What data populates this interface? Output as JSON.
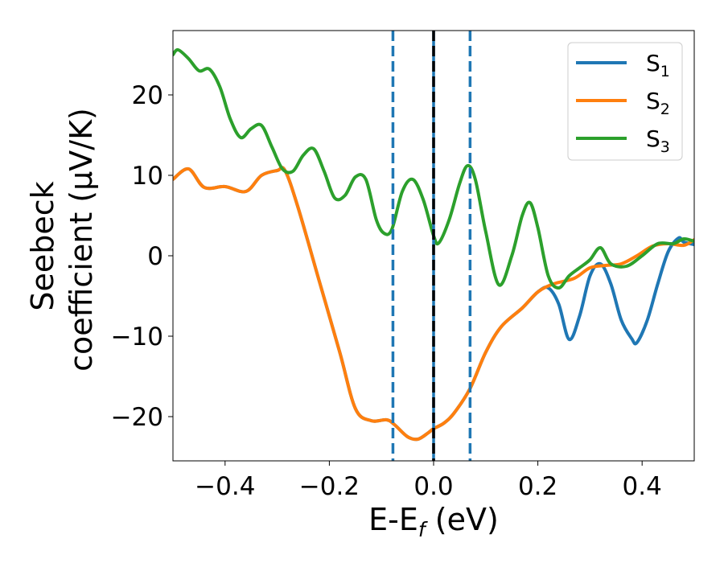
{
  "chart_data": {
    "type": "line",
    "xlabel": "E-E",
    "xlabel_sub": "f",
    "xlabel_unit": " (eV)",
    "ylabel_line1": "Seebeck",
    "ylabel_line2": "coefficient  (μV/K)",
    "xlim": [
      -0.5,
      0.5
    ],
    "ylim": [
      -25.5,
      28
    ],
    "xticks": [
      -0.4,
      -0.2,
      0.0,
      0.2,
      0.4
    ],
    "xtick_labels": [
      "−0.4",
      "−0.2",
      "0.0",
      "0.2",
      "0.4"
    ],
    "yticks": [
      -20,
      -10,
      0,
      10,
      20
    ],
    "ytick_labels": [
      "−20",
      "−10",
      "0",
      "10",
      "20"
    ],
    "grid": false,
    "legend_position": "top-right",
    "vlines": [
      {
        "x": -0.078,
        "color": "#1f77b4",
        "style": "dashed"
      },
      {
        "x": 0.0,
        "color": "#1f77b4",
        "style": "solid"
      },
      {
        "x": 0.0,
        "color": "#000000",
        "style": "dashed"
      },
      {
        "x": 0.07,
        "color": "#1f77b4",
        "style": "dashed"
      }
    ],
    "series": [
      {
        "name": "S",
        "sub": "1",
        "color": "#1f77b4",
        "x": [
          -0.5,
          -0.47,
          -0.44,
          -0.4,
          -0.36,
          -0.33,
          -0.3,
          -0.285,
          -0.26,
          -0.22,
          -0.18,
          -0.15,
          -0.12,
          -0.09,
          -0.075,
          -0.05,
          -0.03,
          -0.01,
          0.0,
          0.02,
          0.04,
          0.07,
          0.1,
          0.13,
          0.17,
          0.2,
          0.22,
          0.24,
          0.26,
          0.28,
          0.3,
          0.32,
          0.34,
          0.36,
          0.38,
          0.39,
          0.41,
          0.43,
          0.45,
          0.47,
          0.48,
          0.5
        ],
        "y": [
          9.5,
          10.8,
          8.5,
          8.6,
          8.0,
          10.0,
          10.6,
          10.6,
          6.0,
          -3.0,
          -12.0,
          -19.0,
          -20.5,
          -20.4,
          -21.0,
          -22.5,
          -22.8,
          -22.0,
          -21.5,
          -20.8,
          -19.5,
          -16.5,
          -12.0,
          -8.8,
          -6.5,
          -4.5,
          -4.0,
          -6.0,
          -10.4,
          -7.5,
          -2.5,
          -1.0,
          -3.5,
          -8.0,
          -10.3,
          -10.8,
          -8.0,
          -3.5,
          0.5,
          2.2,
          1.7,
          1.4
        ]
      },
      {
        "name": "S",
        "sub": "2",
        "color": "#ff7f0e",
        "x": [
          -0.5,
          -0.47,
          -0.44,
          -0.4,
          -0.36,
          -0.33,
          -0.3,
          -0.285,
          -0.26,
          -0.22,
          -0.18,
          -0.15,
          -0.12,
          -0.09,
          -0.075,
          -0.05,
          -0.03,
          -0.01,
          0.0,
          0.02,
          0.04,
          0.07,
          0.1,
          0.13,
          0.17,
          0.2,
          0.23,
          0.27,
          0.3,
          0.33,
          0.36,
          0.39,
          0.42,
          0.45,
          0.48,
          0.5
        ],
        "y": [
          9.5,
          10.8,
          8.5,
          8.6,
          8.0,
          10.0,
          10.6,
          10.6,
          6.0,
          -3.0,
          -12.0,
          -19.0,
          -20.5,
          -20.4,
          -21.0,
          -22.5,
          -22.8,
          -22.0,
          -21.5,
          -20.8,
          -19.5,
          -16.5,
          -12.0,
          -8.8,
          -6.5,
          -4.5,
          -3.5,
          -2.8,
          -1.5,
          -1.2,
          -1.0,
          0.0,
          1.2,
          1.5,
          1.3,
          2.0
        ]
      },
      {
        "name": "S",
        "sub": "3",
        "color": "#2ca02c",
        "x": [
          -0.5,
          -0.49,
          -0.47,
          -0.45,
          -0.43,
          -0.41,
          -0.39,
          -0.37,
          -0.35,
          -0.33,
          -0.31,
          -0.29,
          -0.27,
          -0.25,
          -0.23,
          -0.21,
          -0.19,
          -0.17,
          -0.15,
          -0.13,
          -0.11,
          -0.095,
          -0.08,
          -0.06,
          -0.04,
          -0.02,
          0.0,
          0.01,
          0.03,
          0.05,
          0.065,
          0.08,
          0.1,
          0.125,
          0.15,
          0.17,
          0.185,
          0.2,
          0.22,
          0.24,
          0.26,
          0.28,
          0.3,
          0.32,
          0.34,
          0.37,
          0.4,
          0.43,
          0.46,
          0.48,
          0.5
        ],
        "y": [
          25.0,
          25.6,
          24.5,
          23.0,
          23.2,
          21.0,
          17.0,
          14.7,
          15.8,
          16.2,
          13.5,
          10.8,
          10.5,
          12.5,
          13.3,
          10.5,
          7.2,
          7.5,
          9.8,
          9.5,
          4.5,
          2.8,
          3.3,
          8.0,
          9.5,
          7.0,
          2.5,
          1.6,
          4.5,
          9.0,
          11.2,
          9.5,
          3.0,
          -3.6,
          0.0,
          5.0,
          6.6,
          3.5,
          -2.5,
          -4.0,
          -2.5,
          -1.5,
          -0.5,
          1.0,
          -1.0,
          -1.3,
          0.0,
          1.5,
          1.5,
          2.1,
          1.8
        ]
      }
    ]
  }
}
